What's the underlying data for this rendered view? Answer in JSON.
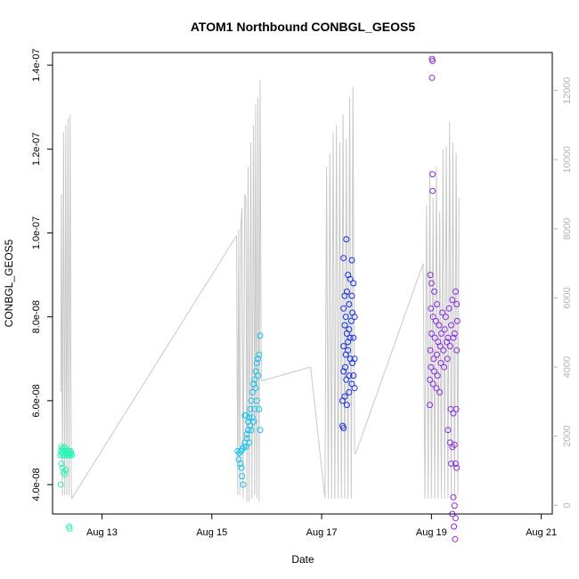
{
  "chart_data": {
    "type": "scatter",
    "title": "ATOM1 Northbound CONBGL_GEOS5",
    "xlabel": "Date",
    "ylabel": "CONBGL_GEOS5",
    "x_unit": "days since Aug 12",
    "xlim": [
      0.1,
      9.2
    ],
    "ylim": [
      3.3e-08,
      1.43e-07
    ],
    "y2lim": [
      -250,
      13100
    ],
    "x_ticks": [
      {
        "value": 1,
        "label": "Aug 13"
      },
      {
        "value": 3,
        "label": "Aug 15"
      },
      {
        "value": 5,
        "label": "Aug 17"
      },
      {
        "value": 7,
        "label": "Aug 19"
      },
      {
        "value": 9,
        "label": "Aug 21"
      }
    ],
    "y_ticks": [
      {
        "value": 4e-08,
        "label": "4.0e-08"
      },
      {
        "value": 6e-08,
        "label": "6.0e-08"
      },
      {
        "value": 8e-08,
        "label": "8.0e-08"
      },
      {
        "value": 1e-07,
        "label": "1.0e-07"
      },
      {
        "value": 1.2e-07,
        "label": "1.2e-07"
      },
      {
        "value": 1.4e-07,
        "label": "1.4e-07"
      }
    ],
    "y2_ticks": [
      {
        "value": 0,
        "label": "0"
      },
      {
        "value": 2000,
        "label": "2000"
      },
      {
        "value": 4000,
        "label": "4000"
      },
      {
        "value": 6000,
        "label": "6000"
      },
      {
        "value": 8000,
        "label": "8000"
      },
      {
        "value": 10000,
        "label": "10000"
      },
      {
        "value": 12000,
        "label": "12000"
      }
    ],
    "colors": {
      "altitude_line": "#c8c8c8",
      "flight1": "#2ef2b8",
      "flight2": "#14c2f0",
      "flight3": "#1530e6",
      "flight4": "#8a2be2"
    },
    "altitude_series": [
      {
        "name": "flight1",
        "points": [
          [
            0.25,
            3300
          ],
          [
            0.26,
            9000
          ],
          [
            0.28,
            300
          ],
          [
            0.3,
            10800
          ],
          [
            0.32,
            300
          ],
          [
            0.34,
            11000
          ],
          [
            0.36,
            300
          ],
          [
            0.38,
            11200
          ],
          [
            0.4,
            300
          ],
          [
            0.42,
            11300
          ],
          [
            0.44,
            500
          ],
          [
            0.45,
            200
          ],
          [
            3.45,
            7800
          ]
        ]
      },
      {
        "name": "flight2",
        "points": [
          [
            3.45,
            7800
          ],
          [
            3.47,
            300
          ],
          [
            3.49,
            8000
          ],
          [
            3.51,
            300
          ],
          [
            3.53,
            8200
          ],
          [
            3.55,
            8600
          ],
          [
            3.57,
            200
          ],
          [
            3.6,
            9000
          ],
          [
            3.62,
            8900
          ],
          [
            3.64,
            100
          ],
          [
            3.66,
            9800
          ],
          [
            3.68,
            100
          ],
          [
            3.71,
            10500
          ],
          [
            3.73,
            200
          ],
          [
            3.76,
            11000
          ],
          [
            3.78,
            300
          ],
          [
            3.8,
            11600
          ],
          [
            3.82,
            200
          ],
          [
            3.84,
            11800
          ],
          [
            3.86,
            100
          ],
          [
            3.88,
            12300
          ],
          [
            3.9,
            3600
          ],
          [
            4.8,
            4000
          ]
        ]
      },
      {
        "name": "flight3",
        "points": [
          [
            4.8,
            4000
          ],
          [
            5.06,
            200
          ],
          [
            5.09,
            9800
          ],
          [
            5.12,
            200
          ],
          [
            5.15,
            10200
          ],
          [
            5.18,
            200
          ],
          [
            5.21,
            10800
          ],
          [
            5.24,
            200
          ],
          [
            5.27,
            11000
          ],
          [
            5.3,
            200
          ],
          [
            5.33,
            10500
          ],
          [
            5.36,
            200
          ],
          [
            5.39,
            11300
          ],
          [
            5.42,
            200
          ],
          [
            5.45,
            10600
          ],
          [
            5.48,
            200
          ],
          [
            5.51,
            11800
          ],
          [
            5.54,
            200
          ],
          [
            5.57,
            12100
          ],
          [
            5.6,
            1500
          ],
          [
            5.62,
            1500
          ],
          [
            6.85,
            7000
          ]
        ]
      },
      {
        "name": "flight4",
        "points": [
          [
            6.85,
            7000
          ],
          [
            6.88,
            200
          ],
          [
            6.91,
            8700
          ],
          [
            6.94,
            200
          ],
          [
            6.97,
            9700
          ],
          [
            7.0,
            200
          ],
          [
            7.03,
            8900
          ],
          [
            7.06,
            200
          ],
          [
            7.09,
            9800
          ],
          [
            7.12,
            200
          ],
          [
            7.15,
            8500
          ],
          [
            7.18,
            200
          ],
          [
            7.21,
            10300
          ],
          [
            7.24,
            200
          ],
          [
            7.27,
            10400
          ],
          [
            7.3,
            200
          ],
          [
            7.33,
            11100
          ],
          [
            7.36,
            200
          ],
          [
            7.39,
            10500
          ],
          [
            7.42,
            200
          ],
          [
            7.45,
            10200
          ],
          [
            7.48,
            300
          ],
          [
            7.5,
            8900
          ]
        ]
      }
    ],
    "series": [
      {
        "name": "flight1",
        "color": "#2ef2b8",
        "points": [
          [
            0.24,
            4.7e-08
          ],
          [
            0.25,
            4.8e-08
          ],
          [
            0.26,
            4.9e-08
          ],
          [
            0.27,
            4.75e-08
          ],
          [
            0.28,
            4.85e-08
          ],
          [
            0.29,
            4.7e-08
          ],
          [
            0.3,
            4.8e-08
          ],
          [
            0.31,
            4.9e-08
          ],
          [
            0.32,
            4.7e-08
          ],
          [
            0.33,
            4.8e-08
          ],
          [
            0.34,
            4.75e-08
          ],
          [
            0.35,
            4.85e-08
          ],
          [
            0.36,
            4.7e-08
          ],
          [
            0.37,
            4.8e-08
          ],
          [
            0.38,
            4.75e-08
          ],
          [
            0.39,
            4.7e-08
          ],
          [
            0.4,
            4.8e-08
          ],
          [
            0.41,
            4.75e-08
          ],
          [
            0.42,
            4.7e-08
          ],
          [
            0.43,
            4.8e-08
          ],
          [
            0.44,
            4.75e-08
          ],
          [
            0.45,
            4.7e-08
          ],
          [
            0.26,
            4.5e-08
          ],
          [
            0.28,
            4.4e-08
          ],
          [
            0.3,
            4.3e-08
          ],
          [
            0.32,
            4.25e-08
          ],
          [
            0.34,
            4.35e-08
          ],
          [
            0.25,
            4e-08
          ],
          [
            0.4,
            3e-08
          ],
          [
            0.41,
            2.95e-08
          ]
        ]
      },
      {
        "name": "flight2",
        "color": "#14c2f0",
        "points": [
          [
            3.47,
            4.8e-08
          ],
          [
            3.5,
            4.75e-08
          ],
          [
            3.53,
            4.8e-08
          ],
          [
            3.56,
            4.85e-08
          ],
          [
            3.49,
            4.6e-08
          ],
          [
            3.52,
            4.5e-08
          ],
          [
            3.54,
            4.4e-08
          ],
          [
            3.55,
            4.2e-08
          ],
          [
            3.57,
            4e-08
          ],
          [
            3.58,
            4.9e-08
          ],
          [
            3.6,
            5e-08
          ],
          [
            3.62,
            4.9e-08
          ],
          [
            3.64,
            5.2e-08
          ],
          [
            3.66,
            5.3e-08
          ],
          [
            3.68,
            5.6e-08
          ],
          [
            3.7,
            5.8e-08
          ],
          [
            3.72,
            6e-08
          ],
          [
            3.74,
            6.2e-08
          ],
          [
            3.76,
            6.4e-08
          ],
          [
            3.78,
            6.5e-08
          ],
          [
            3.8,
            6.7e-08
          ],
          [
            3.82,
            6.9e-08
          ],
          [
            3.84,
            7e-08
          ],
          [
            3.86,
            7.1e-08
          ],
          [
            3.88,
            7.55e-08
          ],
          [
            3.62,
            5.65e-08
          ],
          [
            3.66,
            5.5e-08
          ],
          [
            3.7,
            5.4e-08
          ],
          [
            3.74,
            5.6e-08
          ],
          [
            3.78,
            5.8e-08
          ],
          [
            3.82,
            6e-08
          ],
          [
            3.86,
            5.8e-08
          ],
          [
            3.88,
            5.3e-08
          ],
          [
            3.64,
            5.1e-08
          ],
          [
            3.68,
            5e-08
          ],
          [
            3.72,
            5.3e-08
          ],
          [
            3.76,
            5.5e-08
          ],
          [
            3.8,
            6.3e-08
          ],
          [
            3.84,
            6.6e-08
          ],
          [
            3.6,
            5.65e-08
          ]
        ]
      },
      {
        "name": "flight3",
        "color": "#1530e6",
        "points": [
          [
            5.4,
            9.4e-08
          ],
          [
            5.45,
            9.85e-08
          ],
          [
            5.48,
            9e-08
          ],
          [
            5.55,
            9.35e-08
          ],
          [
            5.42,
            8.5e-08
          ],
          [
            5.52,
            8.9e-08
          ],
          [
            5.58,
            8.8e-08
          ],
          [
            5.4,
            8.2e-08
          ],
          [
            5.44,
            8e-08
          ],
          [
            5.5,
            8.3e-08
          ],
          [
            5.56,
            8.1e-08
          ],
          [
            5.6,
            8e-08
          ],
          [
            5.42,
            7.8e-08
          ],
          [
            5.46,
            7.6e-08
          ],
          [
            5.5,
            7.7e-08
          ],
          [
            5.54,
            7.9e-08
          ],
          [
            5.58,
            7.5e-08
          ],
          [
            5.4,
            7.3e-08
          ],
          [
            5.44,
            7.1e-08
          ],
          [
            5.48,
            7.2e-08
          ],
          [
            5.52,
            7e-08
          ],
          [
            5.56,
            6.9e-08
          ],
          [
            5.6,
            7e-08
          ],
          [
            5.4,
            6.7e-08
          ],
          [
            5.45,
            6.5e-08
          ],
          [
            5.5,
            6.6e-08
          ],
          [
            5.55,
            6.4e-08
          ],
          [
            5.6,
            6.3e-08
          ],
          [
            5.38,
            6e-08
          ],
          [
            5.42,
            6.1e-08
          ],
          [
            5.46,
            5.9e-08
          ],
          [
            5.5,
            6.2e-08
          ],
          [
            5.38,
            5.4e-08
          ],
          [
            5.4,
            5.35e-08
          ],
          [
            5.58,
            6.6e-08
          ],
          [
            5.52,
            7.5e-08
          ],
          [
            5.46,
            8.6e-08
          ],
          [
            5.55,
            8.5e-08
          ],
          [
            5.48,
            7.4e-08
          ],
          [
            5.43,
            6.8e-08
          ]
        ]
      },
      {
        "name": "flight4",
        "color": "#8a2be2",
        "points": [
          [
            7.01,
            1.415e-07
          ],
          [
            7.02,
            1.41e-07
          ],
          [
            7.01,
            1.37e-07
          ],
          [
            7.02,
            1.14e-07
          ],
          [
            7.02,
            1.1e-07
          ],
          [
            6.98,
            9e-08
          ],
          [
            7.0,
            8.8e-08
          ],
          [
            7.05,
            8.6e-08
          ],
          [
            7.1,
            8.3e-08
          ],
          [
            6.99,
            8.2e-08
          ],
          [
            7.03,
            8e-08
          ],
          [
            7.08,
            7.9e-08
          ],
          [
            7.14,
            7.8e-08
          ],
          [
            7.2,
            8.1e-08
          ],
          [
            7.26,
            8e-08
          ],
          [
            7.32,
            8.2e-08
          ],
          [
            7.38,
            8.4e-08
          ],
          [
            7.44,
            8.6e-08
          ],
          [
            7.46,
            8.3e-08
          ],
          [
            7.0,
            7.6e-08
          ],
          [
            7.06,
            7.5e-08
          ],
          [
            7.12,
            7.4e-08
          ],
          [
            7.18,
            7.6e-08
          ],
          [
            7.24,
            7.7e-08
          ],
          [
            7.3,
            7.5e-08
          ],
          [
            7.36,
            7.8e-08
          ],
          [
            7.42,
            7.6e-08
          ],
          [
            7.47,
            7.9e-08
          ],
          [
            6.98,
            7.2e-08
          ],
          [
            7.04,
            7e-08
          ],
          [
            7.1,
            7.1e-08
          ],
          [
            7.16,
            7.3e-08
          ],
          [
            7.22,
            7.2e-08
          ],
          [
            7.28,
            7.4e-08
          ],
          [
            7.34,
            7.3e-08
          ],
          [
            7.4,
            7.5e-08
          ],
          [
            7.46,
            7.2e-08
          ],
          [
            6.99,
            6.8e-08
          ],
          [
            7.05,
            6.7e-08
          ],
          [
            7.11,
            6.6e-08
          ],
          [
            7.17,
            6.9e-08
          ],
          [
            7.23,
            6.8e-08
          ],
          [
            7.29,
            7e-08
          ],
          [
            6.97,
            6.5e-08
          ],
          [
            7.03,
            6.4e-08
          ],
          [
            7.09,
            6.3e-08
          ],
          [
            7.15,
            6.2e-08
          ],
          [
            6.97,
            5.9e-08
          ],
          [
            7.35,
            5.8e-08
          ],
          [
            7.4,
            5.7e-08
          ],
          [
            7.45,
            5.8e-08
          ],
          [
            7.3,
            5.3e-08
          ],
          [
            7.34,
            5e-08
          ],
          [
            7.38,
            4.9e-08
          ],
          [
            7.42,
            4.95e-08
          ],
          [
            7.44,
            4.5e-08
          ],
          [
            7.46,
            4.4e-08
          ],
          [
            7.36,
            4.5e-08
          ],
          [
            7.4,
            3.7e-08
          ],
          [
            7.42,
            3.5e-08
          ],
          [
            7.38,
            3.3e-08
          ],
          [
            7.44,
            3.2e-08
          ],
          [
            7.41,
            3e-08
          ],
          [
            7.43,
            2.7e-08
          ]
        ]
      }
    ]
  }
}
